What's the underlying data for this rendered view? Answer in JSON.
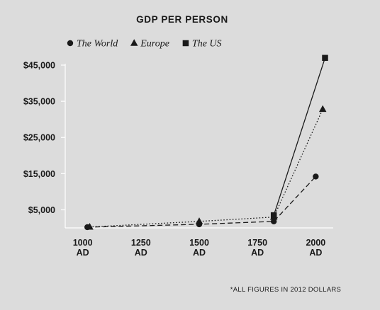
{
  "chart_data": {
    "type": "line",
    "title": "GDP PER PERSON",
    "footnote": "*ALL FIGURES IN 2012 DOLLARS",
    "x_tick_labels": [
      {
        "line1": "1000",
        "line2": "AD",
        "value": 1000
      },
      {
        "line1": "1250",
        "line2": "AD",
        "value": 1250
      },
      {
        "line1": "1500",
        "line2": "AD",
        "value": 1500
      },
      {
        "line1": "1750",
        "line2": "AD",
        "value": 1750
      },
      {
        "line1": "2000",
        "line2": "AD",
        "value": 2000
      }
    ],
    "y_ticks": [
      {
        "label": "$5,000",
        "value": 5000
      },
      {
        "label": "$15,000",
        "value": 15000
      },
      {
        "label": "$25,000",
        "value": 25000
      },
      {
        "label": "$35,000",
        "value": 35000
      },
      {
        "label": "$45,000",
        "value": 45000
      }
    ],
    "xlim": [
      925,
      2075
    ],
    "ylim": [
      0,
      45000
    ],
    "grid": false,
    "legend_position": "top",
    "series": [
      {
        "name": "The World",
        "marker": "circle",
        "line_style": "dashed",
        "color": "#1a1a1a",
        "points": [
          {
            "x": 1020,
            "y": 200
          },
          {
            "x": 1500,
            "y": 1000
          },
          {
            "x": 1820,
            "y": 1800
          },
          {
            "x": 2000,
            "y": 14200
          }
        ]
      },
      {
        "name": "Europe",
        "marker": "triangle",
        "line_style": "dotted",
        "color": "#1a1a1a",
        "points": [
          {
            "x": 1030,
            "y": 250
          },
          {
            "x": 1500,
            "y": 1800
          },
          {
            "x": 1820,
            "y": 3000
          },
          {
            "x": 2030,
            "y": 32800
          }
        ]
      },
      {
        "name": "The US",
        "marker": "square",
        "line_style": "solid",
        "color": "#1a1a1a",
        "points": [
          {
            "x": 1820,
            "y": 3500
          },
          {
            "x": 2040,
            "y": 47000
          }
        ]
      }
    ]
  }
}
